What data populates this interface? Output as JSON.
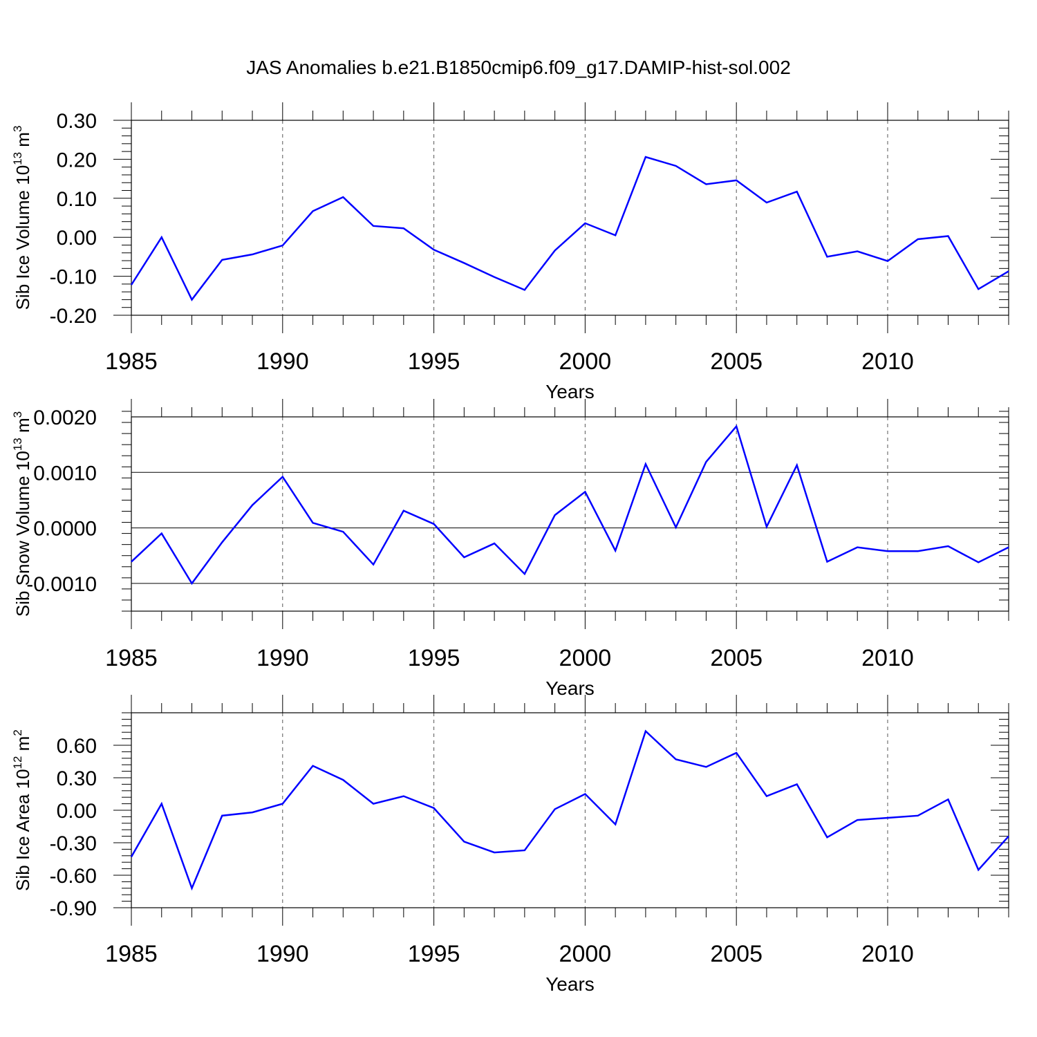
{
  "figure_title": "JAS Anomalies b.e21.B1850cmip6.f09_g17.DAMIP-hist-sol.002",
  "colors": {
    "series": "#0000ff",
    "axis": "#000000",
    "grid": "#555555"
  },
  "chart_data": [
    {
      "type": "line",
      "title": "",
      "xlabel": "Years",
      "ylabel_main": "Sib Ice Volume 10",
      "ylabel_sup": "13",
      "ylabel_unit": " m",
      "ylabel_unit_sup": "3",
      "xlim": [
        1985,
        2014
      ],
      "ylim": [
        -0.2,
        0.3
      ],
      "xticks": [
        1985,
        1990,
        1995,
        2000,
        2005,
        2010
      ],
      "yticks": [
        -0.2,
        -0.1,
        0.0,
        0.1,
        0.2,
        0.3
      ],
      "ytick_labels": [
        "-0.20",
        "-0.10",
        "0.00",
        "0.10",
        "0.20",
        "0.30"
      ],
      "ygrid": false,
      "x": [
        1985,
        1986,
        1987,
        1988,
        1989,
        1990,
        1991,
        1992,
        1993,
        1994,
        1995,
        1996,
        1997,
        1998,
        1999,
        2000,
        2001,
        2002,
        2003,
        2004,
        2005,
        2006,
        2007,
        2008,
        2009,
        2010,
        2011,
        2012,
        2013,
        2014
      ],
      "series": [
        {
          "name": "Sib Ice Volume",
          "values": [
            -0.122,
            0.0,
            -0.16,
            -0.058,
            -0.044,
            -0.021,
            0.067,
            0.103,
            0.029,
            0.023,
            -0.032,
            -0.066,
            -0.102,
            -0.135,
            -0.034,
            0.036,
            0.005,
            0.206,
            0.183,
            0.136,
            0.146,
            0.089,
            0.117,
            -0.05,
            -0.036,
            -0.061,
            -0.005,
            0.003,
            -0.133,
            -0.087
          ]
        }
      ]
    },
    {
      "type": "line",
      "title": "",
      "xlabel": "Years",
      "ylabel_main": "Sib Snow Volume 10",
      "ylabel_sup": "13",
      "ylabel_unit": " m",
      "ylabel_unit_sup": "3",
      "xlim": [
        1985,
        2014
      ],
      "ylim": [
        -0.0015,
        0.002
      ],
      "xticks": [
        1985,
        1990,
        1995,
        2000,
        2005,
        2010
      ],
      "yticks": [
        -0.001,
        0.0,
        0.001,
        0.002
      ],
      "ytick_labels": [
        "-0.0010",
        "0.0000",
        "0.0010",
        "0.0020"
      ],
      "ygrid": true,
      "x": [
        1985,
        1986,
        1987,
        1988,
        1989,
        1990,
        1991,
        1992,
        1993,
        1994,
        1995,
        1996,
        1997,
        1998,
        1999,
        2000,
        2001,
        2002,
        2003,
        2004,
        2005,
        2006,
        2007,
        2008,
        2009,
        2010,
        2011,
        2012,
        2013,
        2014
      ],
      "series": [
        {
          "name": "Sib Snow Volume",
          "values": [
            -0.00061,
            -0.0001,
            -0.001,
            -0.00026,
            0.00041,
            0.00092,
            9e-05,
            -7e-05,
            -0.00066,
            0.00031,
            7e-05,
            -0.00053,
            -0.00028,
            -0.00083,
            0.00023,
            0.00065,
            -0.00041,
            0.00115,
            1e-05,
            0.00119,
            0.00183,
            2e-05,
            0.00113,
            -0.00061,
            -0.00035,
            -0.00042,
            -0.00042,
            -0.00033,
            -0.00062,
            -0.00035
          ]
        }
      ]
    },
    {
      "type": "line",
      "title": "",
      "xlabel": "Years",
      "ylabel_main": "Sib Ice Area 10",
      "ylabel_sup": "12",
      "ylabel_unit": " m",
      "ylabel_unit_sup": "2",
      "xlim": [
        1985,
        2014
      ],
      "ylim": [
        -0.9,
        0.9
      ],
      "xticks": [
        1985,
        1990,
        1995,
        2000,
        2005,
        2010
      ],
      "yticks": [
        -0.9,
        -0.6,
        -0.3,
        0.0,
        0.3,
        0.6
      ],
      "ytick_labels": [
        "-0.90",
        "-0.60",
        "-0.30",
        "0.00",
        "0.30",
        "0.60"
      ],
      "ygrid": false,
      "x": [
        1985,
        1986,
        1987,
        1988,
        1989,
        1990,
        1991,
        1992,
        1993,
        1994,
        1995,
        1996,
        1997,
        1998,
        1999,
        2000,
        2001,
        2002,
        2003,
        2004,
        2005,
        2006,
        2007,
        2008,
        2009,
        2010,
        2011,
        2012,
        2013,
        2014
      ],
      "series": [
        {
          "name": "Sib Ice Area",
          "values": [
            -0.43,
            0.06,
            -0.72,
            -0.05,
            -0.02,
            0.06,
            0.41,
            0.28,
            0.06,
            0.13,
            0.02,
            -0.29,
            -0.39,
            -0.37,
            0.01,
            0.15,
            -0.13,
            0.73,
            0.47,
            0.4,
            0.53,
            0.13,
            0.24,
            -0.25,
            -0.09,
            -0.07,
            -0.05,
            0.1,
            -0.55,
            -0.24
          ]
        }
      ]
    }
  ]
}
